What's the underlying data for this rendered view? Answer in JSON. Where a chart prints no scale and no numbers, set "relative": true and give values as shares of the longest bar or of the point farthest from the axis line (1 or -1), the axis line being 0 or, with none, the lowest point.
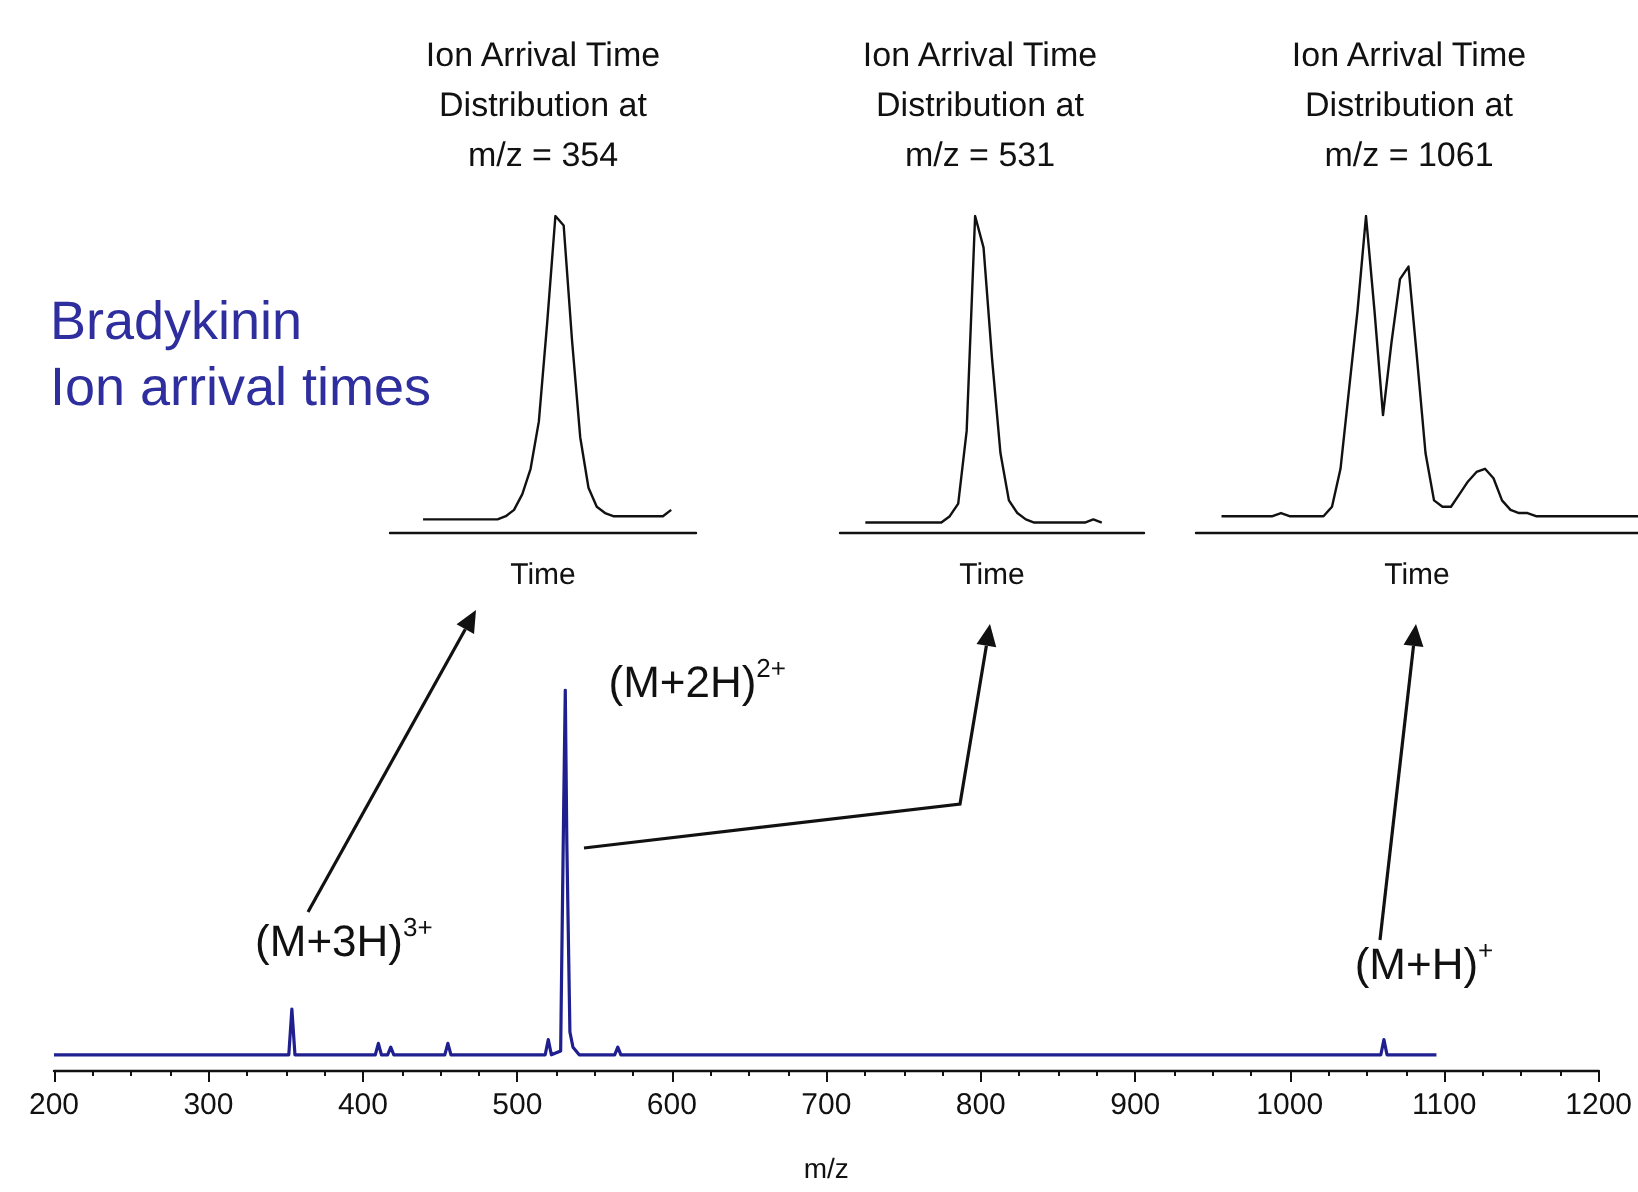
{
  "chart_data": [
    {
      "type": "line",
      "title": "Bradykinin",
      "subtitle": "Ion arrival times",
      "xlabel": "m/z",
      "relative": true,
      "color": "#1f1f8f",
      "xlim": [
        200,
        1200
      ],
      "xticks": [
        200,
        300,
        400,
        500,
        600,
        700,
        800,
        900,
        1000,
        1100,
        1200
      ],
      "x": [
        200,
        352,
        354,
        356,
        408,
        410,
        412,
        416,
        418,
        420,
        453,
        455,
        457,
        518,
        520,
        522,
        528,
        530,
        531,
        532,
        534,
        536,
        540,
        563,
        565,
        567,
        1059,
        1061,
        1063,
        1095
      ],
      "values": [
        0.04,
        0.04,
        0.16,
        0.04,
        0.04,
        0.07,
        0.04,
        0.04,
        0.06,
        0.04,
        0.04,
        0.07,
        0.04,
        0.04,
        0.08,
        0.04,
        0.05,
        0.7,
        1,
        0.6,
        0.1,
        0.06,
        0.04,
        0.04,
        0.06,
        0.04,
        0.04,
        0.08,
        0.04,
        0.04
      ],
      "annotations": [
        {
          "text": "(M+3H)$^{3+}$",
          "x": 354,
          "y": 0.16
        },
        {
          "text": "(M+2H)$^{2+}$",
          "x": 531,
          "y": 1
        },
        {
          "text": "(M+H)$^{+}$",
          "x": 1061,
          "y": 0.08
        }
      ]
    },
    {
      "type": "line",
      "title": "Ion Arrival Time\nDistribution at\nm/z = 354",
      "xlabel": "Time",
      "relative": true,
      "tick_labels": false,
      "color": "#111111",
      "categories": [
        null,
        null,
        null,
        null,
        null,
        null,
        null,
        null,
        null,
        null,
        null,
        null,
        null,
        null,
        null,
        null,
        null,
        null,
        null,
        null,
        null,
        null,
        null,
        null,
        null,
        null,
        null,
        null,
        null,
        null,
        null,
        null,
        null,
        null,
        null,
        null,
        null,
        null
      ],
      "values": [
        null,
        null,
        null,
        null,
        0.04,
        0.04,
        0.04,
        0.04,
        0.04,
        0.04,
        0.04,
        0.04,
        0.04,
        0.04,
        0.05,
        0.07,
        0.12,
        0.2,
        0.35,
        0.66,
        1,
        0.97,
        0.61,
        0.3,
        0.14,
        0.08,
        0.06,
        0.05,
        0.05,
        0.05,
        0.05,
        0.05,
        0.05,
        0.05,
        0.07,
        null,
        null,
        null
      ]
    },
    {
      "type": "line",
      "title": "Ion Arrival Time\nDistribution at\nm/z = 531",
      "xlabel": "Time",
      "relative": true,
      "tick_labels": false,
      "color": "#111111",
      "categories": [
        null,
        null,
        null,
        null,
        null,
        null,
        null,
        null,
        null,
        null,
        null,
        null,
        null,
        null,
        null,
        null,
        null,
        null,
        null,
        null,
        null,
        null,
        null,
        null,
        null,
        null,
        null,
        null,
        null,
        null,
        null,
        null,
        null,
        null,
        null,
        null,
        null
      ],
      "values": [
        null,
        null,
        null,
        0.03,
        0.03,
        0.03,
        0.03,
        0.03,
        0.03,
        0.03,
        0.03,
        0.03,
        0.03,
        0.05,
        0.09,
        0.32,
        1,
        0.9,
        0.55,
        0.25,
        0.1,
        0.06,
        0.04,
        0.03,
        0.03,
        0.03,
        0.03,
        0.03,
        0.03,
        0.03,
        0.04,
        0.03,
        null,
        null,
        null,
        null,
        null
      ]
    },
    {
      "type": "line",
      "title": "Ion Arrival Time\nDistribution at\nm/z = 1061",
      "xlabel": "Time",
      "relative": true,
      "tick_labels": false,
      "color": "#111111",
      "categories": [
        null,
        null,
        null,
        null,
        null,
        null,
        null,
        null,
        null,
        null,
        null,
        null,
        null,
        null,
        null,
        null,
        null,
        null,
        null,
        null,
        null,
        null,
        null,
        null,
        null,
        null,
        null,
        null,
        null,
        null,
        null,
        null,
        null,
        null,
        null,
        null,
        null,
        null,
        null,
        null,
        null,
        null,
        null,
        null,
        null,
        null,
        null,
        null,
        null,
        null,
        null,
        null,
        null
      ],
      "values": [
        null,
        null,
        null,
        0.05,
        0.05,
        0.05,
        0.05,
        0.05,
        0.05,
        0.05,
        0.06,
        0.05,
        0.05,
        0.05,
        0.05,
        0.05,
        0.08,
        0.2,
        0.45,
        0.7,
        1,
        0.7,
        0.37,
        0.6,
        0.8,
        0.84,
        0.55,
        0.25,
        0.1,
        0.08,
        0.08,
        0.12,
        0.16,
        0.19,
        0.2,
        0.17,
        0.1,
        0.07,
        0.06,
        0.06,
        0.05,
        0.05,
        0.05,
        0.05,
        0.05,
        0.05,
        0.05,
        0.05,
        0.05,
        0.05,
        0.05,
        0.05,
        0.05
      ]
    }
  ]
}
